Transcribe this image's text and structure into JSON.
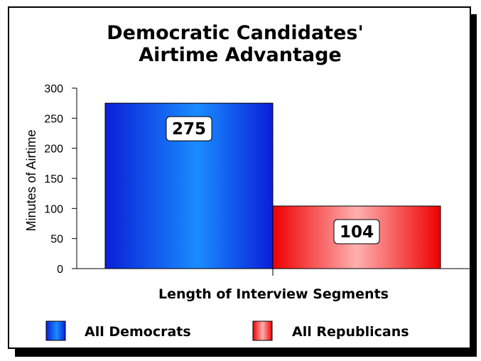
{
  "chart_data": {
    "type": "bar",
    "title": [
      "Democratic Candidates'",
      "Airtime Advantage"
    ],
    "xlabel": "Length of Interview Segments",
    "ylabel": "Minutes of Airtime",
    "ylim": [
      0,
      300
    ],
    "yticks": [
      0,
      50,
      100,
      150,
      200,
      250,
      300
    ],
    "grid": false,
    "legend_position": "bottom",
    "series": [
      {
        "name": "All Democrats",
        "value": 275,
        "color": "#1166ff"
      },
      {
        "name": "All Republicans",
        "value": 104,
        "color": "#ff3333"
      }
    ]
  }
}
